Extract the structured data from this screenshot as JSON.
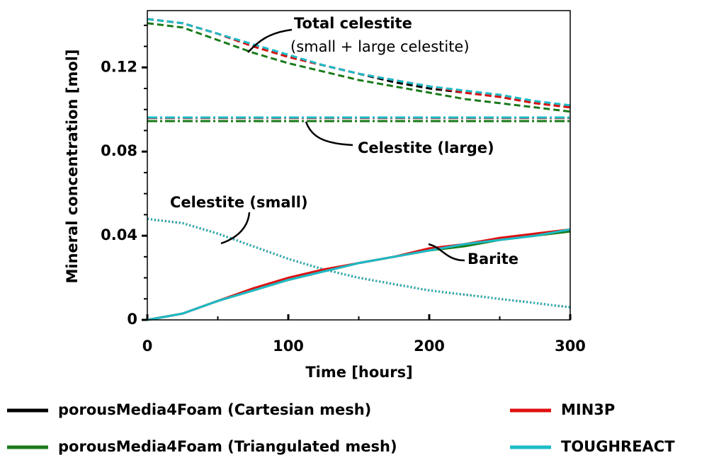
{
  "chart_data": {
    "type": "line",
    "xlabel": "Time [hours]",
    "ylabel": "Mineral concentration [mol]",
    "x": [
      0,
      25,
      50,
      75,
      100,
      125,
      150,
      175,
      200,
      225,
      250,
      275,
      300
    ],
    "xlim": [
      0,
      300
    ],
    "xticks": [
      0,
      100,
      200,
      300
    ],
    "xminorticks": [
      50,
      150,
      250
    ],
    "ylim": [
      0,
      0.147
    ],
    "yticks": [
      0,
      {
        "value": 0.04,
        "label": "0.04"
      },
      {
        "value": 0.08,
        "label": "0.08"
      },
      {
        "value": 0.12,
        "label": "0.12"
      }
    ],
    "yminorticks": [
      0.01,
      0.02,
      0.03,
      0.05,
      0.06,
      0.07,
      0.09,
      0.1,
      0.11,
      0.13,
      0.14
    ],
    "annotations": [
      "Total celestite",
      "(small + large celestite)",
      "Celestite (large)",
      "Celestite (small)",
      "Barite"
    ],
    "series": [
      {
        "name": "porousMedia4Foam (Cartesian mesh)",
        "color": "#000000",
        "total_celestite": [
          0.143,
          0.141,
          0.136,
          0.13,
          0.125,
          0.121,
          0.117,
          0.113,
          0.11,
          0.108,
          0.106,
          0.103,
          0.101
        ],
        "celestite_large": [
          0.096,
          0.096,
          0.096,
          0.096,
          0.096,
          0.096,
          0.096,
          0.096,
          0.096,
          0.096,
          0.096,
          0.096,
          0.096
        ],
        "celestite_small": [
          0.048,
          0.046,
          0.041,
          0.035,
          0.029,
          0.024,
          0.02,
          0.017,
          0.014,
          0.012,
          0.01,
          0.008,
          0.006
        ],
        "barite": [
          0,
          0.003,
          0.009,
          0.014,
          0.019,
          0.023,
          0.027,
          0.03,
          0.033,
          0.036,
          0.038,
          0.04,
          0.043
        ]
      },
      {
        "name": "porousMedia4Foam (Triangulated mesh)",
        "color": "#1a7a1a",
        "total_celestite": [
          0.141,
          0.139,
          0.133,
          0.127,
          0.122,
          0.118,
          0.114,
          0.111,
          0.108,
          0.105,
          0.103,
          0.101,
          0.099
        ],
        "celestite_large": [
          0.0945,
          0.0945,
          0.0945,
          0.0945,
          0.0945,
          0.0945,
          0.0945,
          0.0945,
          0.0945,
          0.0945,
          0.0945,
          0.0945,
          0.0945
        ],
        "celestite_small": [
          0.048,
          0.046,
          0.041,
          0.035,
          0.029,
          0.024,
          0.02,
          0.017,
          0.014,
          0.012,
          0.01,
          0.008,
          0.006
        ],
        "barite": [
          0,
          0.003,
          0.009,
          0.014,
          0.019,
          0.023,
          0.027,
          0.03,
          0.033,
          0.035,
          0.038,
          0.04,
          0.042
        ]
      },
      {
        "name": "MIN3P",
        "color": "#e01010",
        "total_celestite": [
          0.143,
          0.141,
          0.136,
          0.13,
          0.125,
          0.121,
          0.117,
          0.114,
          0.111,
          0.108,
          0.106,
          0.103,
          0.101
        ],
        "celestite_large": [
          0.096,
          0.096,
          0.096,
          0.096,
          0.096,
          0.096,
          0.096,
          0.096,
          0.096,
          0.096,
          0.096,
          0.096,
          0.096
        ],
        "celestite_small": [
          0.048,
          0.046,
          0.041,
          0.035,
          0.029,
          0.024,
          0.02,
          0.017,
          0.014,
          0.012,
          0.01,
          0.008,
          0.006
        ],
        "barite": [
          0,
          0.003,
          0.009,
          0.015,
          0.02,
          0.024,
          0.027,
          0.03,
          0.034,
          0.036,
          0.039,
          0.041,
          0.043
        ]
      },
      {
        "name": "TOUGHREACT",
        "color": "#1bbcc8",
        "total_celestite": [
          0.143,
          0.141,
          0.136,
          0.131,
          0.126,
          0.121,
          0.117,
          0.114,
          0.111,
          0.109,
          0.107,
          0.104,
          0.102
        ],
        "celestite_large": [
          0.0962,
          0.0962,
          0.0962,
          0.0962,
          0.0962,
          0.0962,
          0.0962,
          0.0962,
          0.0962,
          0.0962,
          0.0962,
          0.0962,
          0.0962
        ],
        "celestite_small": [
          0.048,
          0.046,
          0.041,
          0.035,
          0.029,
          0.024,
          0.02,
          0.017,
          0.014,
          0.012,
          0.01,
          0.008,
          0.006
        ],
        "barite": [
          0,
          0.003,
          0.009,
          0.014,
          0.019,
          0.023,
          0.027,
          0.03,
          0.033,
          0.036,
          0.038,
          0.04,
          0.043
        ]
      }
    ]
  }
}
